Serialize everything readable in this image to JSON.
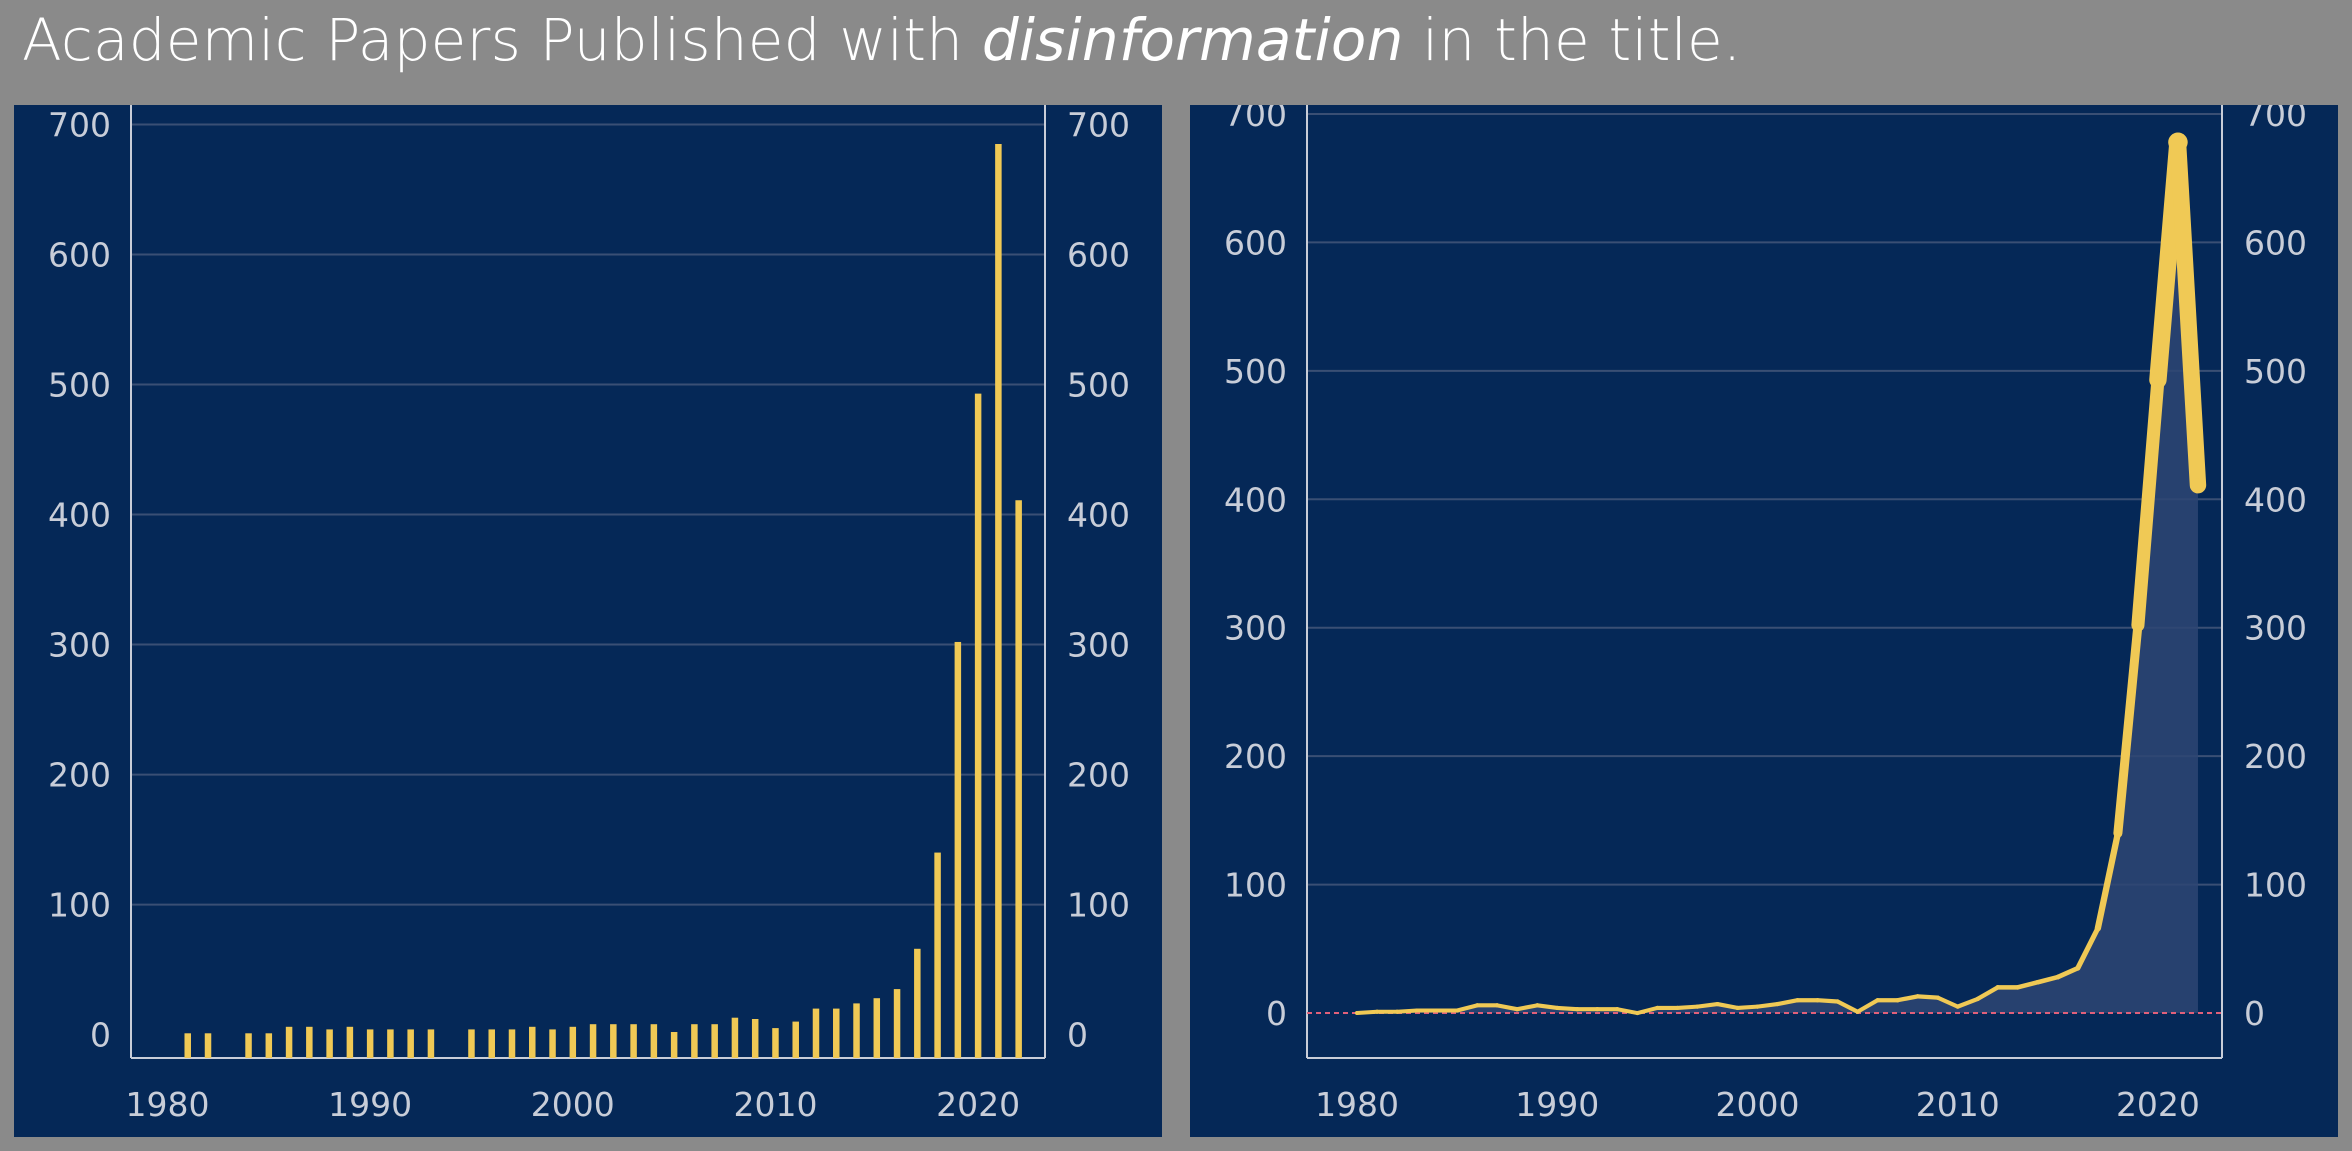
{
  "page": {
    "title_prefix": "Academic Papers Published with ",
    "title_emphasis": "disinformation",
    "title_suffix": " in the title.",
    "colors": {
      "page_bg": "#8a8a8a",
      "panel_bg": "#052857",
      "accent": "#f0c955",
      "gridline": "#3a4f74",
      "axis": "#c8cdd8",
      "area_fill": "#2e4573",
      "zero_line": "#e0607a"
    }
  },
  "chart_data": [
    {
      "type": "bar",
      "x": [
        1980,
        1981,
        1982,
        1983,
        1984,
        1985,
        1986,
        1987,
        1988,
        1989,
        1990,
        1991,
        1992,
        1993,
        1994,
        1995,
        1996,
        1997,
        1998,
        1999,
        2000,
        2001,
        2002,
        2003,
        2004,
        2005,
        2006,
        2007,
        2008,
        2009,
        2010,
        2011,
        2012,
        2013,
        2014,
        2015,
        2016,
        2017,
        2018,
        2019,
        2020,
        2021,
        2022
      ],
      "values": [
        0,
        1,
        1,
        0,
        1,
        1,
        6,
        6,
        4,
        6,
        4,
        4,
        4,
        4,
        0,
        4,
        4,
        4,
        6,
        4,
        6,
        8,
        8,
        8,
        8,
        2,
        8,
        8,
        13,
        12,
        5,
        10,
        20,
        20,
        24,
        28,
        35,
        66,
        140,
        302,
        493,
        685,
        411
      ],
      "xticks": [
        1980,
        1990,
        2000,
        2010,
        2020
      ],
      "yticks": [
        0,
        100,
        200,
        300,
        400,
        500,
        600,
        700
      ],
      "ylim": [
        -18,
        715
      ],
      "xlim": [
        1978.2,
        2023.3
      ],
      "grid": true,
      "dual_y_axis": true
    },
    {
      "type": "line",
      "x": [
        1980,
        1981,
        1982,
        1983,
        1984,
        1985,
        1986,
        1987,
        1988,
        1989,
        1990,
        1991,
        1992,
        1993,
        1994,
        1995,
        1996,
        1997,
        1998,
        1999,
        2000,
        2001,
        2002,
        2003,
        2004,
        2005,
        2006,
        2007,
        2008,
        2009,
        2010,
        2011,
        2012,
        2013,
        2014,
        2015,
        2016,
        2017,
        2018,
        2019,
        2020,
        2021,
        2022
      ],
      "values": [
        0,
        1,
        1,
        2,
        2,
        2,
        6,
        6,
        3,
        6,
        4,
        3,
        3,
        3,
        0,
        4,
        4,
        5,
        7,
        4,
        5,
        7,
        10,
        10,
        9,
        1,
        10,
        10,
        13,
        12,
        5,
        11,
        20,
        20,
        24,
        28,
        35,
        66,
        140,
        302,
        493,
        678,
        411
      ],
      "xticks": [
        1980,
        1990,
        2000,
        2010,
        2020
      ],
      "yticks": [
        0,
        100,
        200,
        300,
        400,
        500,
        600,
        700
      ],
      "ylim": [
        -35,
        707
      ],
      "xlim": [
        1977.5,
        2023.2
      ],
      "grid": true,
      "area_fill": true,
      "zero_reference_line": true,
      "dual_y_axis": true
    }
  ]
}
